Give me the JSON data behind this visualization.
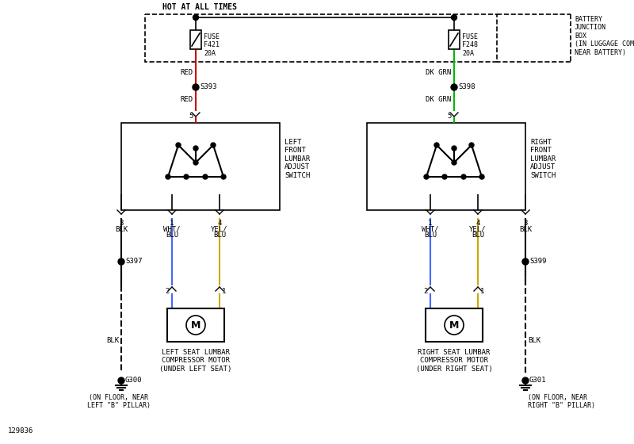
{
  "bg_color": "#ffffff",
  "diagram_id": "129836",
  "hot_at_all_times_text": "HOT AT ALL TIMES",
  "battery_box_text": "BATTERY\nJUNCTION\nBOX\n(IN LUGGAGE COMPT,\nNEAR BATTERY)",
  "left_fuse_text": "FUSE\nF421\n20A",
  "right_fuse_text": "FUSE\nF248\n20A",
  "left_switch_label": "LEFT\nFRONT\nLUMBAR\nADJUST\nSWITCH",
  "right_switch_label": "RIGHT\nFRONT\nLUMBAR\nADJUST\nSWITCH",
  "left_motor_label": "LEFT SEAT LUMBAR\nCOMPRESSOR MOTOR\n(UNDER LEFT SEAT)",
  "right_motor_label": "RIGHT SEAT LUMBAR\nCOMPRESSOR MOTOR\n(UNDER RIGHT SEAT)",
  "s393_label": "S393",
  "s397_label": "S397",
  "s398_label": "S398",
  "s399_label": "S399",
  "g300_label": "G300",
  "g300_sub": "(ON FLOOR, NEAR\nLEFT \"B\" PILLAR)",
  "g301_label": "G301",
  "g301_sub": "(ON FLOOR, NEAR\nRIGHT \"B\" PILLAR)",
  "red_color": "#cc0000",
  "green_color": "#00bb00",
  "blue_color": "#4466ff",
  "yellow_color": "#ccaa00",
  "black_color": "#000000",
  "font_size": 6.5
}
